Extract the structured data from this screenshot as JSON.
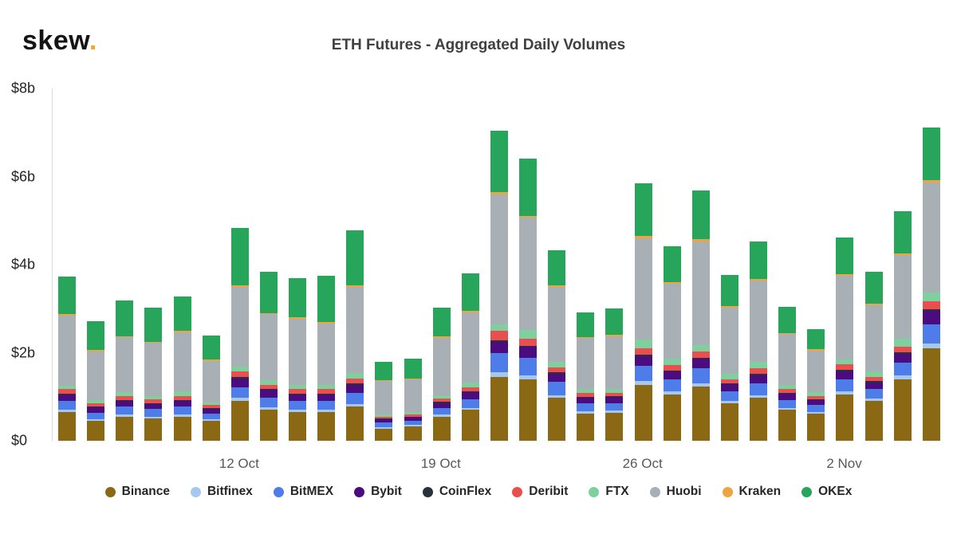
{
  "brand": {
    "name": "skew",
    "dot": "."
  },
  "title": "ETH Futures - Aggregated Daily Volumes",
  "chart_data": {
    "type": "bar",
    "stacked": true,
    "title": "ETH Futures - Aggregated Daily Volumes",
    "ylim": [
      0,
      8
    ],
    "grid": false,
    "legend_position": "bottom",
    "num_bars": 31,
    "y_ticks": [
      {
        "label": "$8b",
        "value": 8
      },
      {
        "label": "$6b",
        "value": 6
      },
      {
        "label": "$4b",
        "value": 4
      },
      {
        "label": "$2b",
        "value": 2
      },
      {
        "label": "$0",
        "value": 0
      }
    ],
    "x_ticks": [
      {
        "bar_index": 6,
        "label": "12 Oct"
      },
      {
        "bar_index": 13,
        "label": "19 Oct"
      },
      {
        "bar_index": 20,
        "label": "26 Oct"
      },
      {
        "bar_index": 27,
        "label": "2 Nov"
      }
    ],
    "unit": "billions USD",
    "series": [
      {
        "name": "Binance",
        "color": "#8b6914",
        "values": [
          0.65,
          0.45,
          0.55,
          0.5,
          0.55,
          0.45,
          0.9,
          0.7,
          0.65,
          0.65,
          0.78,
          0.28,
          0.33,
          0.55,
          0.7,
          1.45,
          1.4,
          0.97,
          0.62,
          0.63,
          1.27,
          1.05,
          1.23,
          0.85,
          0.97,
          0.7,
          0.62,
          1.05,
          0.9,
          1.4,
          2.1
        ]
      },
      {
        "name": "Bitfinex",
        "color": "#a6c8ee",
        "values": [
          0.05,
          0.04,
          0.05,
          0.05,
          0.05,
          0.04,
          0.07,
          0.06,
          0.05,
          0.05,
          0.06,
          0.03,
          0.03,
          0.04,
          0.05,
          0.1,
          0.08,
          0.07,
          0.05,
          0.05,
          0.08,
          0.07,
          0.08,
          0.06,
          0.07,
          0.05,
          0.04,
          0.07,
          0.06,
          0.08,
          0.1
        ]
      },
      {
        "name": "BitMEX",
        "color": "#4e7de9",
        "values": [
          0.2,
          0.15,
          0.18,
          0.17,
          0.18,
          0.13,
          0.25,
          0.22,
          0.2,
          0.2,
          0.25,
          0.1,
          0.1,
          0.15,
          0.2,
          0.45,
          0.4,
          0.3,
          0.18,
          0.18,
          0.35,
          0.27,
          0.33,
          0.22,
          0.27,
          0.18,
          0.15,
          0.28,
          0.22,
          0.3,
          0.45
        ]
      },
      {
        "name": "Bybit",
        "color": "#4b0c7f",
        "values": [
          0.15,
          0.12,
          0.13,
          0.12,
          0.13,
          0.1,
          0.2,
          0.17,
          0.15,
          0.15,
          0.18,
          0.08,
          0.08,
          0.12,
          0.15,
          0.25,
          0.25,
          0.18,
          0.13,
          0.13,
          0.22,
          0.18,
          0.22,
          0.15,
          0.18,
          0.13,
          0.12,
          0.18,
          0.15,
          0.2,
          0.3
        ]
      },
      {
        "name": "CoinFlex",
        "color": "#27323c",
        "values": [
          0.02,
          0.02,
          0.02,
          0.02,
          0.02,
          0.02,
          0.03,
          0.02,
          0.02,
          0.02,
          0.03,
          0.01,
          0.01,
          0.02,
          0.02,
          0.04,
          0.03,
          0.03,
          0.02,
          0.02,
          0.03,
          0.03,
          0.03,
          0.02,
          0.03,
          0.02,
          0.02,
          0.03,
          0.02,
          0.03,
          0.04
        ]
      },
      {
        "name": "Deribit",
        "color": "#ea4f4f",
        "values": [
          0.1,
          0.08,
          0.09,
          0.08,
          0.09,
          0.07,
          0.12,
          0.1,
          0.1,
          0.1,
          0.12,
          0.05,
          0.05,
          0.08,
          0.1,
          0.2,
          0.15,
          0.12,
          0.08,
          0.08,
          0.15,
          0.12,
          0.14,
          0.1,
          0.12,
          0.09,
          0.07,
          0.12,
          0.1,
          0.13,
          0.18
        ]
      },
      {
        "name": "FTX",
        "color": "#7fcf9f",
        "values": [
          0.08,
          0.07,
          0.08,
          0.08,
          0.1,
          0.06,
          0.12,
          0.1,
          0.1,
          0.1,
          0.12,
          0.05,
          0.05,
          0.08,
          0.1,
          0.15,
          0.2,
          0.12,
          0.1,
          0.08,
          0.2,
          0.15,
          0.15,
          0.12,
          0.15,
          0.1,
          0.08,
          0.12,
          0.12,
          0.18,
          0.2
        ]
      },
      {
        "name": "Huobi",
        "color": "#a8afb5",
        "values": [
          1.6,
          1.1,
          1.25,
          1.2,
          1.35,
          0.95,
          1.8,
          1.5,
          1.5,
          1.4,
          1.95,
          0.75,
          0.75,
          1.3,
          1.6,
          2.95,
          2.55,
          1.7,
          1.15,
          1.2,
          2.3,
          1.7,
          2.35,
          1.5,
          1.85,
          1.15,
          0.95,
          1.9,
          1.5,
          1.9,
          2.5
        ]
      },
      {
        "name": "Kraken",
        "color": "#eda63f",
        "values": [
          0.03,
          0.03,
          0.03,
          0.03,
          0.03,
          0.02,
          0.04,
          0.03,
          0.03,
          0.03,
          0.04,
          0.02,
          0.02,
          0.03,
          0.03,
          0.05,
          0.05,
          0.04,
          0.03,
          0.03,
          0.05,
          0.04,
          0.05,
          0.04,
          0.04,
          0.03,
          0.03,
          0.04,
          0.04,
          0.04,
          0.05
        ]
      },
      {
        "name": "OKEx",
        "color": "#27a55a",
        "values": [
          0.85,
          0.65,
          0.8,
          0.78,
          0.78,
          0.55,
          1.3,
          0.93,
          0.9,
          1.05,
          1.25,
          0.42,
          0.45,
          0.65,
          0.85,
          1.4,
          1.3,
          0.8,
          0.55,
          0.6,
          1.2,
          0.8,
          1.1,
          0.7,
          0.85,
          0.6,
          0.45,
          0.82,
          0.72,
          0.95,
          1.2
        ]
      }
    ]
  }
}
